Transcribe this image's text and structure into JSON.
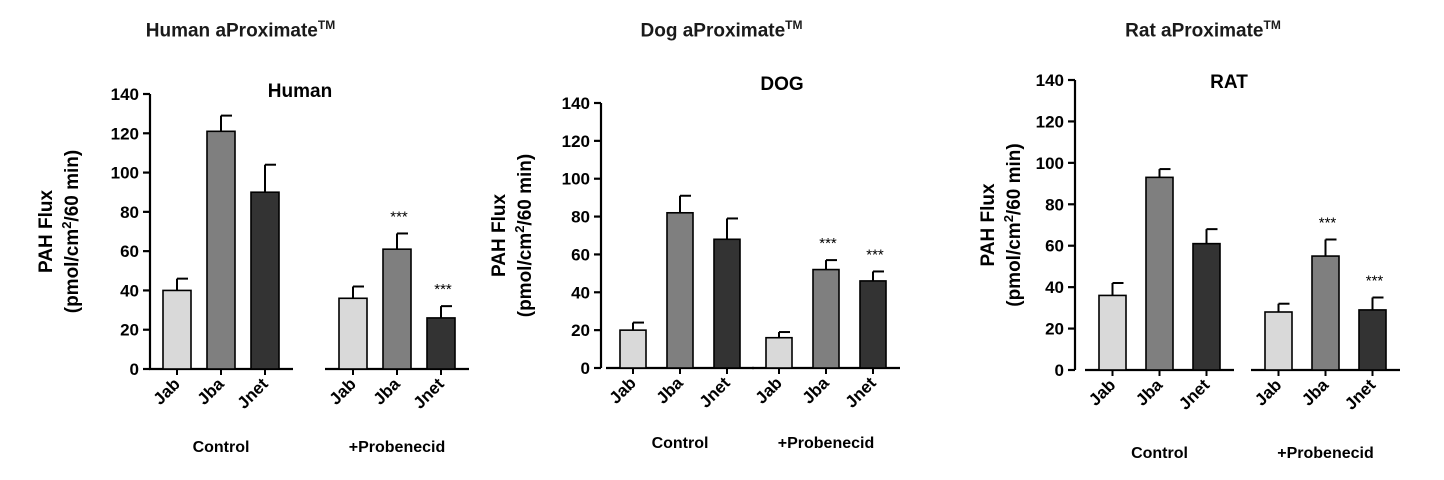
{
  "colors": {
    "light": "#d9d9d9",
    "mid": "#7f7f7f",
    "dark": "#333333",
    "axis": "#000000"
  },
  "panels": [
    {
      "header_main": "Human aProximate",
      "header_tm": "TM"
    },
    {
      "header_main": "Dog aProximate",
      "header_tm": "TM"
    },
    {
      "header_main": "Rat aProximate",
      "header_tm": "TM"
    }
  ],
  "chart_data": [
    {
      "type": "bar",
      "title": "Human",
      "ylabel_line1": "PAH Flux",
      "ylabel_line2_pre": "(pmol/cm",
      "ylabel_sup": "2",
      "ylabel_line2_post": "/60 min)",
      "ylim": [
        0,
        140
      ],
      "yticks": [
        "0",
        "20",
        "40",
        "60",
        "80",
        "100",
        "120",
        "140"
      ],
      "groups": [
        "Control",
        "+Probenecid"
      ],
      "categories": [
        "Jab",
        "Jba",
        "Jnet"
      ],
      "series": [
        {
          "group": "Control",
          "values": [
            40,
            121,
            90
          ],
          "errors": [
            6,
            8,
            14
          ],
          "annotations": [
            "",
            "",
            ""
          ]
        },
        {
          "group": "+Probenecid",
          "values": [
            36,
            61,
            26
          ],
          "errors": [
            6,
            8,
            6
          ],
          "annotations": [
            "",
            "***",
            "***"
          ]
        }
      ]
    },
    {
      "type": "bar",
      "title": "DOG",
      "ylabel_line1": "PAH Flux",
      "ylabel_line2_pre": "(pmol/cm",
      "ylabel_sup": "2",
      "ylabel_line2_post": "/60 min)",
      "ylim": [
        0,
        140
      ],
      "yticks": [
        "0",
        "20",
        "40",
        "60",
        "80",
        "100",
        "120",
        "140"
      ],
      "groups": [
        "Control",
        "+Probenecid"
      ],
      "categories": [
        "Jab",
        "Jba",
        "Jnet"
      ],
      "series": [
        {
          "group": "Control",
          "values": [
            20,
            82,
            68
          ],
          "errors": [
            4,
            9,
            11
          ],
          "annotations": [
            "",
            "",
            ""
          ]
        },
        {
          "group": "+Probenecid",
          "values": [
            16,
            52,
            46
          ],
          "errors": [
            3,
            5,
            5
          ],
          "annotations": [
            "",
            "***",
            "***"
          ]
        }
      ]
    },
    {
      "type": "bar",
      "title": "RAT",
      "ylabel_line1": "PAH Flux",
      "ylabel_line2_pre": "(pmol/cm",
      "ylabel_sup": "2",
      "ylabel_line2_post": "/60 min)",
      "ylim": [
        0,
        140
      ],
      "yticks": [
        "0",
        "20",
        "40",
        "60",
        "80",
        "100",
        "120",
        "140"
      ],
      "groups": [
        "Control",
        "+Probenecid"
      ],
      "categories": [
        "Jab",
        "Jba",
        "Jnet"
      ],
      "series": [
        {
          "group": "Control",
          "values": [
            36,
            93,
            61
          ],
          "errors": [
            6,
            4,
            7
          ],
          "annotations": [
            "",
            "",
            ""
          ]
        },
        {
          "group": "+Probenecid",
          "values": [
            28,
            55,
            29
          ],
          "errors": [
            4,
            8,
            6
          ],
          "annotations": [
            "",
            "***",
            "***"
          ]
        }
      ]
    }
  ]
}
